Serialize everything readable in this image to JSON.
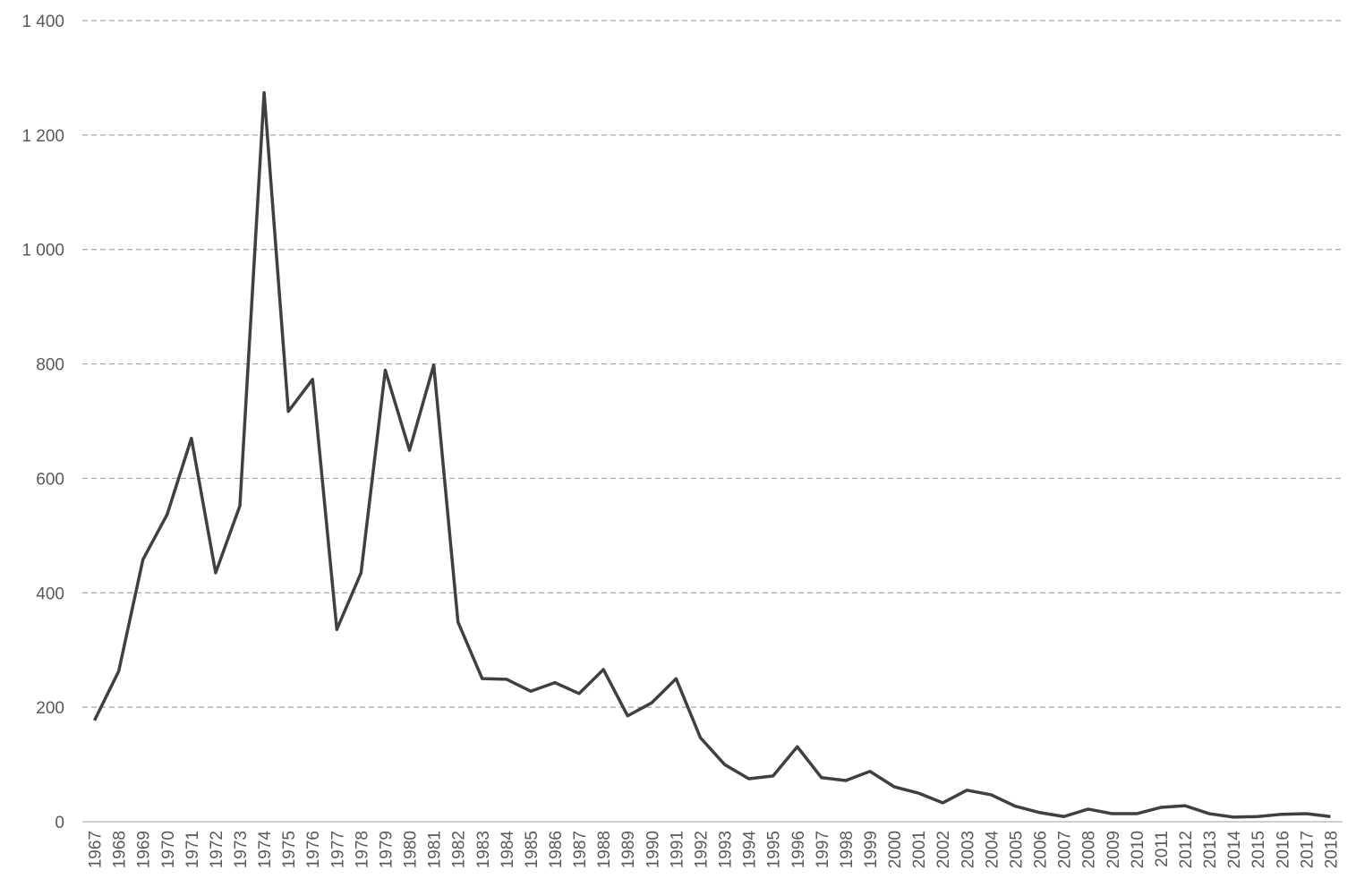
{
  "chart_data": {
    "type": "line",
    "categories": [
      "1967",
      "1968",
      "1969",
      "1970",
      "1971",
      "1972",
      "1973",
      "1974",
      "1975",
      "1976",
      "1977",
      "1978",
      "1979",
      "1980",
      "1981",
      "1982",
      "1983",
      "1984",
      "1985",
      "1986",
      "1987",
      "1988",
      "1989",
      "1990",
      "1991",
      "1992",
      "1993",
      "1994",
      "1995",
      "1996",
      "1997",
      "1998",
      "1999",
      "2000",
      "2001",
      "2002",
      "2003",
      "2004",
      "2005",
      "2006",
      "2007",
      "2008",
      "2009",
      "2010",
      "2011",
      "2012",
      "2013",
      "2014",
      "2015",
      "2016",
      "2017",
      "2018"
    ],
    "values": [
      177,
      263,
      458,
      537,
      670,
      435,
      552,
      1274,
      717,
      773,
      336,
      435,
      789,
      649,
      798,
      349,
      250,
      249,
      228,
      243,
      224,
      266,
      185,
      208,
      250,
      147,
      100,
      75,
      80,
      131,
      77,
      72,
      88,
      61,
      50,
      33,
      55,
      47,
      27,
      16,
      9,
      22,
      14,
      14,
      25,
      28,
      14,
      8,
      9,
      13,
      14,
      9
    ],
    "color": "#404040",
    "ylim": [
      0,
      1400
    ],
    "yticks": [
      0,
      200,
      400,
      600,
      800,
      {
        "value": 1000,
        "label": "1 000"
      },
      {
        "value": 1200,
        "label": "1 200"
      },
      {
        "value": 1400,
        "label": "1 400"
      }
    ],
    "grid": true
  }
}
